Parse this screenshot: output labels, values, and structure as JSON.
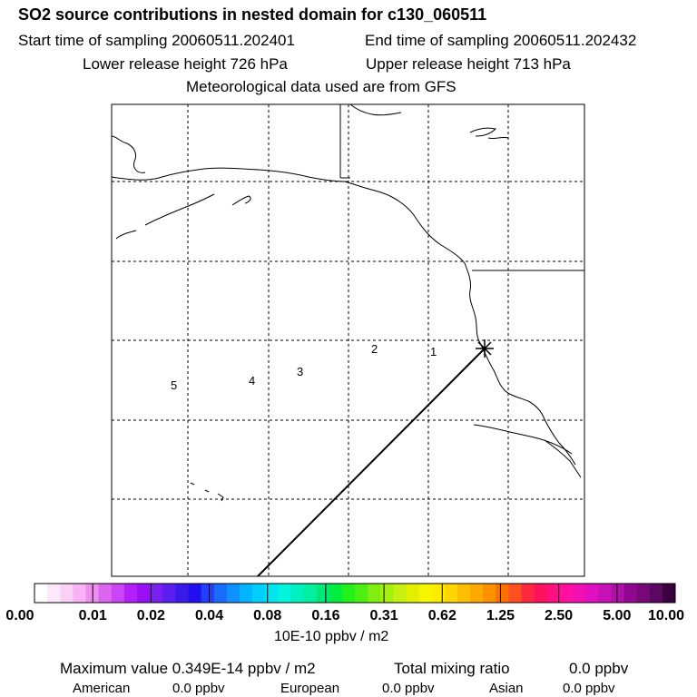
{
  "header": {
    "title": "SO2 source contributions in nested domain for c130_060511",
    "start_time": "Start time of sampling 20060511.202401",
    "end_time": "End time of sampling 20060511.202432",
    "lower_release": "Lower release height  726 hPa",
    "upper_release": "Upper release height  713 hPa",
    "met_data": "Meteorological data used are from GFS"
  },
  "map": {
    "trajectory_labels": [
      "1",
      "2",
      "3",
      "4",
      "5"
    ],
    "source_marker": "release-point-cross"
  },
  "colorbar": {
    "labels": [
      "0.00",
      "0.01",
      "0.02",
      "0.04",
      "0.08",
      "0.16",
      "0.31",
      "0.62",
      "1.25",
      "2.50",
      "5.00",
      "10.00"
    ],
    "units": "10E-10 ppbv / m2",
    "colors": [
      "#ffffff",
      "#fde8fb",
      "#fbd0f7",
      "#f7b3f3",
      "#ee8ff0",
      "#dd66f0",
      "#c945f5",
      "#b31ff8",
      "#9a10f5",
      "#7a20f3",
      "#5a1ef0",
      "#3a1ae8",
      "#2010f0",
      "#1f40ff",
      "#1a6cff",
      "#0f90ff",
      "#00b4ff",
      "#00d0ff",
      "#00e6f0",
      "#00f5dc",
      "#00f0c0",
      "#00f0a0",
      "#00e878",
      "#00ee40",
      "#22f018",
      "#4cf010",
      "#80ee10",
      "#a6f010",
      "#c6f010",
      "#e2f000",
      "#f5f500",
      "#ffeb00",
      "#ffd600",
      "#ffbf00",
      "#ffa800",
      "#ff9000",
      "#ff7000",
      "#ff5020",
      "#ff2840",
      "#ff1060",
      "#ff1080",
      "#ff10a0",
      "#f010b4",
      "#e010c0",
      "#c810b8",
      "#b010a8",
      "#900890",
      "#780878",
      "#5a0860",
      "#3a0040"
    ]
  },
  "footer": {
    "max_value": "Maximum value  0.349E-14 ppbv / m2",
    "total_label": "Total mixing ratio",
    "total_value": "0.0 ppbv",
    "american_label": "American",
    "american_value": "0.0 ppbv",
    "european_label": "European",
    "european_value": "0.0 ppbv",
    "asian_label": "Asian",
    "asian_value": "0.0 ppbv"
  }
}
